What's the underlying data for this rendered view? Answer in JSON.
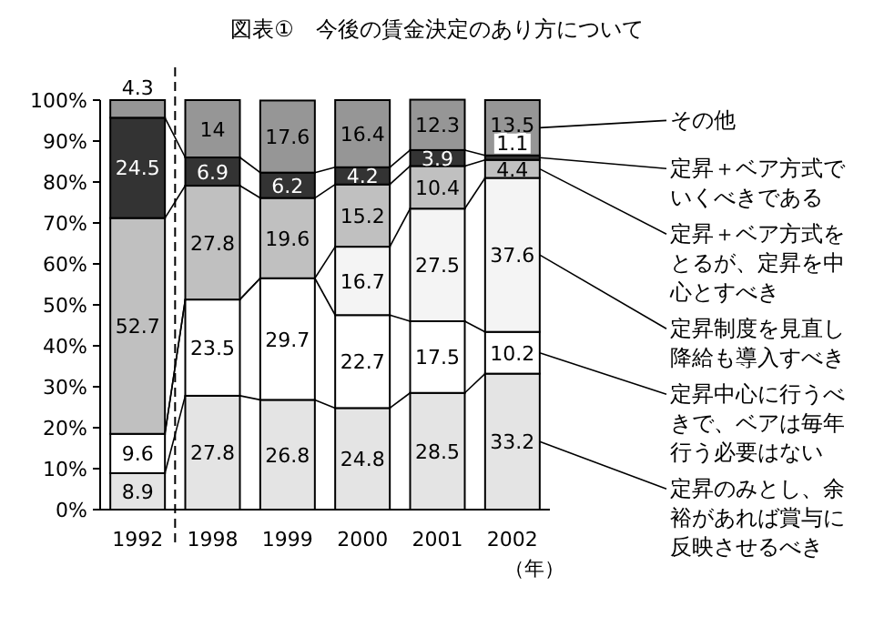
{
  "chart_data": {
    "type": "bar",
    "stacked": true,
    "title": "図表①　今後の賃金決定のあり方について",
    "xlabel": "（年）",
    "categories": [
      "1992",
      "1998",
      "1999",
      "2000",
      "2001",
      "2002"
    ],
    "series": [
      {
        "name": "定昇のみとし、余裕があれば賞与に反映させるべき",
        "color": "#e4e4e4",
        "values": [
          8.9,
          27.8,
          26.8,
          24.8,
          28.5,
          33.2
        ]
      },
      {
        "name": "定昇中心に行うべきで、ベアは毎年行う必要はない",
        "color": "#ffffff",
        "values": [
          9.6,
          23.5,
          29.7,
          22.7,
          17.5,
          10.2
        ]
      },
      {
        "name": "定昇制度を見直し降給も導入すべき",
        "color": "#f4f4f4",
        "values": [
          null,
          null,
          null,
          16.7,
          27.5,
          37.6
        ]
      },
      {
        "name": "定昇＋ベア方式をとるが、定昇を中心とすべき",
        "color": "#c0c0c0",
        "values": [
          52.7,
          27.8,
          19.6,
          15.2,
          10.4,
          4.4
        ]
      },
      {
        "name": "定昇＋ベア方式でいくべきである",
        "color": "#333333",
        "values": [
          24.5,
          6.9,
          6.2,
          4.2,
          3.9,
          1.1
        ]
      },
      {
        "name": "その他",
        "color": "#969696",
        "values": [
          4.3,
          14,
          17.6,
          16.4,
          12.3,
          13.5
        ]
      }
    ],
    "ylim": [
      0,
      100
    ],
    "yticks": [
      {
        "value": 0,
        "label": "0%"
      },
      {
        "value": 10,
        "label": "10%"
      },
      {
        "value": 20,
        "label": "20%"
      },
      {
        "value": 30,
        "label": "30%"
      },
      {
        "value": 40,
        "label": "40%"
      },
      {
        "value": 50,
        "label": "50%"
      },
      {
        "value": 60,
        "label": "60%"
      },
      {
        "value": 70,
        "label": "70%"
      },
      {
        "value": 80,
        "label": "80%"
      },
      {
        "value": 90,
        "label": "90%"
      },
      {
        "value": 100,
        "label": "100%"
      }
    ],
    "data_labels": true,
    "legend": "right"
  }
}
